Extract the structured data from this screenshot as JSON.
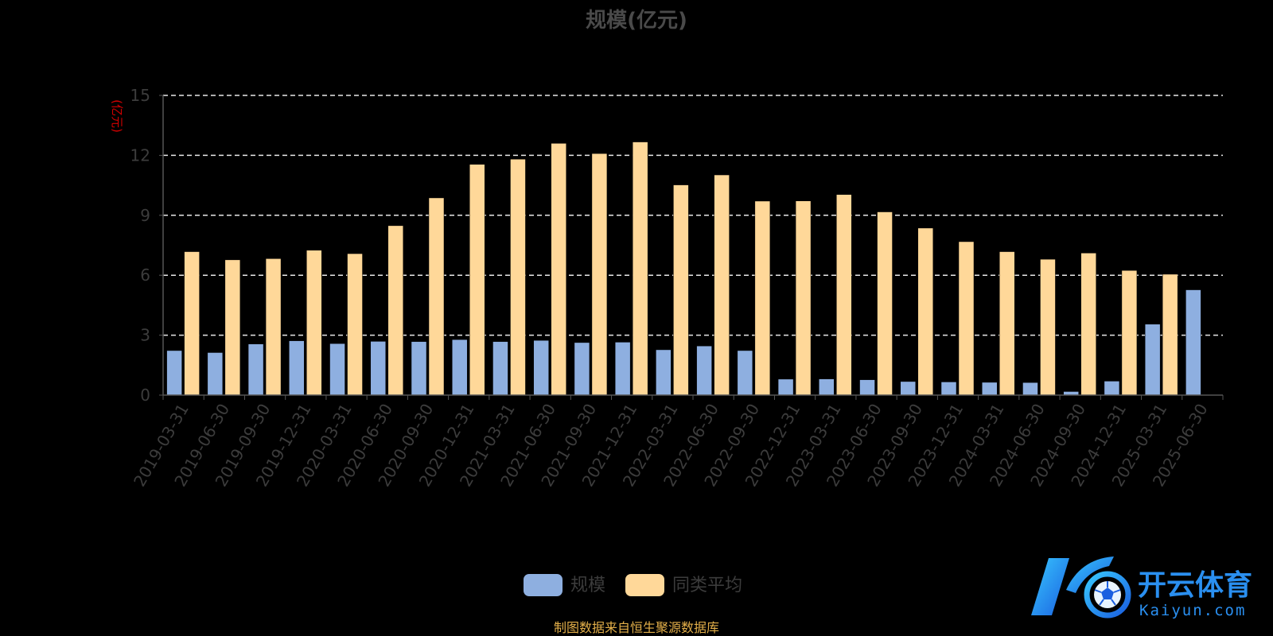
{
  "chart_data": {
    "type": "bar",
    "title": "规模(亿元)",
    "ylabel": "(亿元)",
    "ylim": [
      0,
      15
    ],
    "yticks": [
      0,
      3,
      6,
      9,
      12,
      15
    ],
    "grid": true,
    "legend_position": "bottom-center",
    "categories": [
      "2019-03-31",
      "2019-06-30",
      "2019-09-30",
      "2019-12-31",
      "2020-03-31",
      "2020-06-30",
      "2020-09-30",
      "2020-12-31",
      "2021-03-31",
      "2021-06-30",
      "2021-09-30",
      "2021-12-31",
      "2022-03-31",
      "2022-06-30",
      "2022-09-30",
      "2022-12-31",
      "2023-03-31",
      "2023-06-30",
      "2023-09-30",
      "2023-12-31",
      "2024-03-31",
      "2024-06-30",
      "2024-09-30",
      "2024-12-31",
      "2025-03-31",
      "2025-06-30"
    ],
    "series": [
      {
        "name": "规模",
        "color": "#8eafe0",
        "values": [
          2.23,
          2.13,
          2.56,
          2.72,
          2.58,
          2.69,
          2.68,
          2.78,
          2.68,
          2.74,
          2.63,
          2.65,
          2.27,
          2.46,
          2.23,
          0.8,
          0.81,
          0.77,
          0.68,
          0.66,
          0.64,
          0.63,
          0.18,
          0.7,
          3.55,
          5.27
        ]
      },
      {
        "name": "同类平均",
        "color": "#ffd899",
        "values": [
          7.18,
          6.77,
          6.83,
          7.25,
          7.08,
          8.48,
          9.87,
          11.55,
          11.81,
          12.6,
          12.09,
          12.67,
          10.52,
          11.02,
          9.71,
          9.72,
          10.04,
          9.17,
          8.36,
          7.68,
          7.18,
          6.8,
          7.11,
          6.24,
          6.05,
          null
        ]
      }
    ]
  },
  "source_note": "制图数据来自恒生聚源数据库",
  "watermark": {
    "brand_cn": "开云体育",
    "brand_en": "Kaiyun.com",
    "logo_letter": "K"
  }
}
